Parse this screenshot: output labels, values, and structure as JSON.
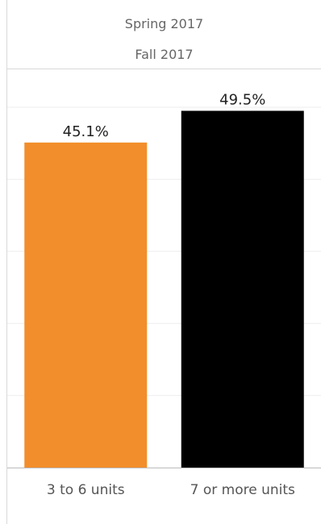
{
  "header": {
    "line1": "Spring 2017",
    "line2": "Fall 2017"
  },
  "chart_data": {
    "type": "bar",
    "title": "",
    "categories": [
      "3 to 6 units",
      "7 or more units"
    ],
    "values": [
      45.1,
      49.5
    ],
    "value_labels": [
      "45.1%",
      "49.5%"
    ],
    "colors": [
      "#f28e2b",
      "#000000"
    ],
    "ylim": [
      0,
      50
    ],
    "gridlines": [
      10,
      20,
      30,
      40,
      50
    ],
    "grid": true,
    "legend": "none",
    "xlabel": "",
    "ylabel": ""
  }
}
